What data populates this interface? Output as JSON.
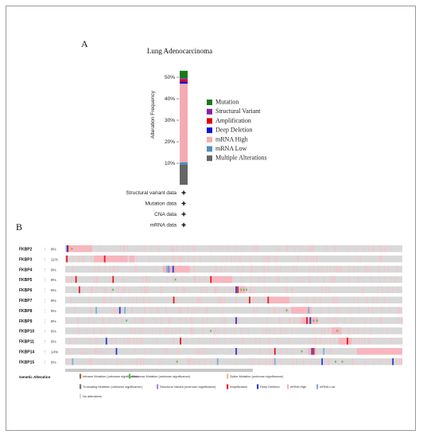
{
  "panelA": {
    "label": "A",
    "title": "Lung Adenocarcinoma",
    "ylabel": "Alteration Frequency",
    "yticks": [
      "10%",
      "20%",
      "30%",
      "40%",
      "50%"
    ],
    "row_labels": [
      "Structural variant data",
      "Mutation data",
      "CNA data",
      "mRNA data"
    ],
    "row_mark": "✚"
  },
  "panelB": {
    "label": "B",
    "legend_title": "Genetic Alteration",
    "legend_items": [
      {
        "label": "Inframe Mutation (unknown significance)",
        "color": "#9e6b3c"
      },
      {
        "label": "Missense Mutation (unknown significance)",
        "color": "#5fb84a"
      },
      {
        "label": "Splice Mutation (unknown significance)",
        "color": "#f0b7a8"
      },
      {
        "label": "Truncating Mutation (unknown significance)",
        "color": "#777777"
      },
      {
        "label": "Structural Variant (unknown significance)",
        "color": "#b285d6"
      },
      {
        "label": "Amplification",
        "color": "#e41a1c"
      },
      {
        "label": "Deep Deletion",
        "color": "#1f3fd6"
      },
      {
        "label": "mRNA High",
        "color": "#f7b6be"
      },
      {
        "label": "mRNA Low",
        "color": "#7fb0d8"
      },
      {
        "label": "No alterations",
        "color": "#d8d8d8"
      }
    ]
  },
  "chart_data": [
    {
      "type": "bar",
      "title": "Lung Adenocarcinoma",
      "xlabel": "",
      "ylabel": "Alteration Frequency",
      "ylim": [
        0,
        55
      ],
      "categories": [
        "Lung Adenocarcinoma"
      ],
      "stacked": true,
      "series": [
        {
          "name": "Multiple Alterations",
          "values": [
            9.5
          ],
          "color": "#666666"
        },
        {
          "name": "mRNA Low",
          "values": [
            1.0
          ],
          "color": "#4f8fc4"
        },
        {
          "name": "mRNA High",
          "values": [
            36.5
          ],
          "color": "#f6aab1"
        },
        {
          "name": "Deep Deletion",
          "values": [
            1.0
          ],
          "color": "#1010d8"
        },
        {
          "name": "Amplification",
          "values": [
            1.0
          ],
          "color": "#e00000"
        },
        {
          "name": "Structural Variant",
          "values": [
            0.5
          ],
          "color": "#8a1fa8"
        },
        {
          "name": "Mutation",
          "values": [
            3.5
          ],
          "color": "#1a7a1a"
        }
      ],
      "legend": [
        "Mutation",
        "Structural Variant",
        "Amplification",
        "Deep Deletion",
        "mRNA High",
        "mRNA Low",
        "Multiple Alterations"
      ],
      "legend_position": "right",
      "grid": false
    },
    {
      "type": "heatmap",
      "genes": [
        {
          "name": "FKBP2",
          "pct": "8%",
          "events": [
            {
              "t": "del",
              "x": 0.004
            },
            {
              "t": "amp",
              "x": 0.007
            },
            {
              "t": "high",
              "x": 0.01,
              "w": 0.07
            },
            {
              "t": "mis",
              "x": 0.018
            }
          ]
        },
        {
          "name": "FKBP3",
          "pct": "11%",
          "events": [
            {
              "t": "amp",
              "x": 0.003
            },
            {
              "t": "high",
              "x": 0.085,
              "w": 0.1
            },
            {
              "t": "amp",
              "x": 0.115
            },
            {
              "t": "high",
              "x": 0.19,
              "w": 0.015
            }
          ]
        },
        {
          "name": "FKBP4",
          "pct": "9%",
          "events": [
            {
              "t": "high",
              "x": 0.29,
              "w": 0.08
            },
            {
              "t": "del",
              "x": 0.305
            },
            {
              "t": "low",
              "x": 0.3,
              "w": 0.008
            },
            {
              "t": "del",
              "x": 0.318
            }
          ]
        },
        {
          "name": "FKBP5",
          "pct": "8%",
          "events": [
            {
              "t": "amp",
              "x": 0.03
            },
            {
              "t": "amp",
              "x": 0.14
            },
            {
              "t": "mis",
              "x": 0.325
            },
            {
              "t": "amp",
              "x": 0.43
            },
            {
              "t": "high",
              "x": 0.435,
              "w": 0.06
            }
          ]
        },
        {
          "name": "FKBP6",
          "pct": "6%",
          "events": [
            {
              "t": "amp",
              "x": 0.04
            },
            {
              "t": "mis",
              "x": 0.14
            },
            {
              "t": "del",
              "x": 0.505
            },
            {
              "t": "amp",
              "x": 0.51
            },
            {
              "t": "high",
              "x": 0.515,
              "w": 0.02
            },
            {
              "t": "mis",
              "x": 0.52
            },
            {
              "t": "mis",
              "x": 0.528
            },
            {
              "t": "mis",
              "x": 0.536
            }
          ]
        },
        {
          "name": "FKBP7",
          "pct": "8%",
          "events": [
            {
              "t": "amp",
              "x": 0.32
            },
            {
              "t": "amp",
              "x": 0.545
            },
            {
              "t": "amp",
              "x": 0.6
            },
            {
              "t": "high",
              "x": 0.605,
              "w": 0.06
            }
          ]
        },
        {
          "name": "FKBP8",
          "pct": "5%",
          "events": [
            {
              "t": "low",
              "x": 0.09
            },
            {
              "t": "del",
              "x": 0.16
            },
            {
              "t": "low",
              "x": 0.175
            },
            {
              "t": "mis",
              "x": 0.655
            },
            {
              "t": "high",
              "x": 0.67,
              "w": 0.06
            },
            {
              "t": "low",
              "x": 0.72
            }
          ]
        },
        {
          "name": "FKBP9",
          "pct": "8%",
          "events": [
            {
              "t": "mis",
              "x": 0.18
            },
            {
              "t": "del",
              "x": 0.505
            },
            {
              "t": "high",
              "x": 0.7,
              "w": 0.05
            },
            {
              "t": "amp",
              "x": 0.715
            },
            {
              "t": "del",
              "x": 0.725
            },
            {
              "t": "mis",
              "x": 0.735
            },
            {
              "t": "mis",
              "x": 0.745
            }
          ]
        },
        {
          "name": "FKBP10",
          "pct": "6%",
          "events": [
            {
              "t": "mis",
              "x": 0.43
            },
            {
              "t": "high",
              "x": 0.79,
              "w": 0.03
            },
            {
              "t": "mis",
              "x": 0.805
            }
          ]
        },
        {
          "name": "FKBP11",
          "pct": "6%",
          "events": [
            {
              "t": "del",
              "x": 0.12
            },
            {
              "t": "amp",
              "x": 0.34
            },
            {
              "t": "high",
              "x": 0.81,
              "w": 0.04
            },
            {
              "t": "amp",
              "x": 0.835
            }
          ]
        },
        {
          "name": "FKBP14",
          "pct": "14%",
          "events": [
            {
              "t": "del",
              "x": 0.15
            },
            {
              "t": "del",
              "x": 0.505
            },
            {
              "t": "amp",
              "x": 0.62
            },
            {
              "t": "high",
              "x": 0.72,
              "w": 0.025
            },
            {
              "t": "mis",
              "x": 0.7
            },
            {
              "t": "del",
              "x": 0.73
            },
            {
              "t": "amp",
              "x": 0.735
            },
            {
              "t": "low",
              "x": 0.765
            },
            {
              "t": "high",
              "x": 0.865,
              "w": 0.135
            }
          ]
        },
        {
          "name": "FKBP15",
          "pct": "6%",
          "events": [
            {
              "t": "low",
              "x": 0.02
            },
            {
              "t": "mis",
              "x": 0.33
            },
            {
              "t": "low",
              "x": 0.45
            },
            {
              "t": "low",
              "x": 0.62
            },
            {
              "t": "del",
              "x": 0.76
            },
            {
              "t": "mis",
              "x": 0.8
            },
            {
              "t": "mis",
              "x": 0.82
            },
            {
              "t": "del",
              "x": 0.97
            }
          ]
        }
      ]
    }
  ]
}
